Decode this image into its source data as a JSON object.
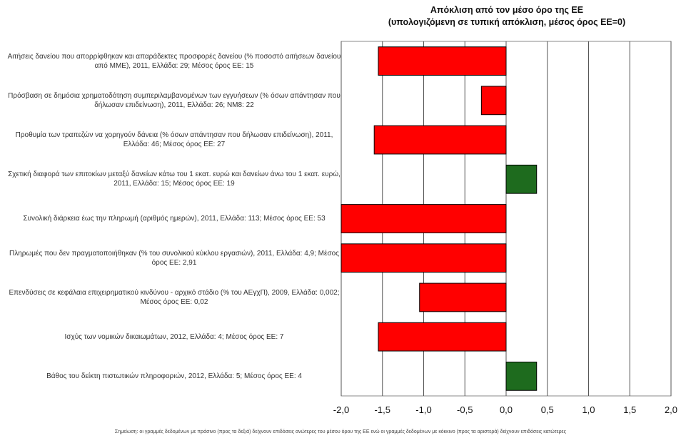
{
  "chart_data": {
    "type": "bar",
    "orientation": "horizontal",
    "title": "Απόκλιση από τον μέσο όρο της ΕΕ",
    "subtitle": "(υπολογιζόμενη σε τυπική απόκλιση, μέσος όρος ΕΕ=0)",
    "xlim": [
      -2.0,
      2.0
    ],
    "xticks": [
      "-2,0",
      "-1,5",
      "-1,0",
      "-0,5",
      "0,0",
      "0,5",
      "1,0",
      "1,5",
      "2,0"
    ],
    "grid": true,
    "colors": {
      "negative": "#ff0000",
      "positive": "#1e6b1e"
    },
    "categories": [
      "Αιτήσεις δανείου που απορρίφθηκαν και απαράδεκτες προσφορές δανείου (% ποσοστό αιτήσεων δανείου από ΜΜΕ), 2011, Ελλάδα: 29; Μέσος όρος ΕΕ: 15",
      "Πρόσβαση σε δημόσια χρηματοδότηση συμπεριλαμβανομένων των εγγυήσεων (% όσων απάντησαν που δήλωσαν επιδείνωση), 2011, Ελλάδα: 26; ΝΜ8: 22",
      "Προθυμία των τραπεζών να χορηγούν δάνεια (% όσων απάντησαν που δήλωσαν επιδείνωση), 2011, Ελλάδα: 46; Μέσος όρος ΕΕ: 27",
      "Σχετική διαφορά των επιτοκίων μεταξύ δανείων κάτω του 1 εκατ. ευρώ και δανείων άνω του 1 εκατ. ευρώ, 2011, Ελλάδα: 15; Μέσος όρος ΕΕ: 19",
      "Συνολική διάρκεια έως την πληρωμή (αριθμός ημερών), 2011, Ελλάδα: 113; Μέσος όρος ΕΕ: 53",
      "Πληρωμές που δεν πραγματοποιήθηκαν (% του συνολικού κύκλου εργασιών), 2011, Ελλάδα: 4,9; Μέσος όρος ΕΕ: 2,91",
      "Επενδύσεις σε κεφάλαια επιχειρηματικού κινδύνου - αρχικό στάδιο (% του ΑΕγχΠ), 2009, Ελλάδα: 0,002; Μέσος όρος ΕΕ: 0,02",
      "Ισχύς των νομικών δικαιωμάτων, 2012, Ελλάδα: 4; Μέσος όρος ΕΕ: 7",
      "Βάθος του δείκτη πιστωτικών πληροφοριών, 2012, Ελλάδα: 5; Μέσος όρος ΕΕ: 4"
    ],
    "values": [
      -1.55,
      -0.3,
      -1.6,
      0.37,
      -2.0,
      -2.0,
      -1.05,
      -1.55,
      0.37
    ]
  },
  "footnote": "Σημείωση: οι γραμμές δεδομένων με πράσινο (προς τα δεξιά) δείχνουν επιδόσεις ανώτερες του μέσου όρου της ΕΕ ενώ οι γραμμές δεδομένων με κόκκινο (προς τα αριστερά) δείχνουν επιδόσεις κατώτερες"
}
